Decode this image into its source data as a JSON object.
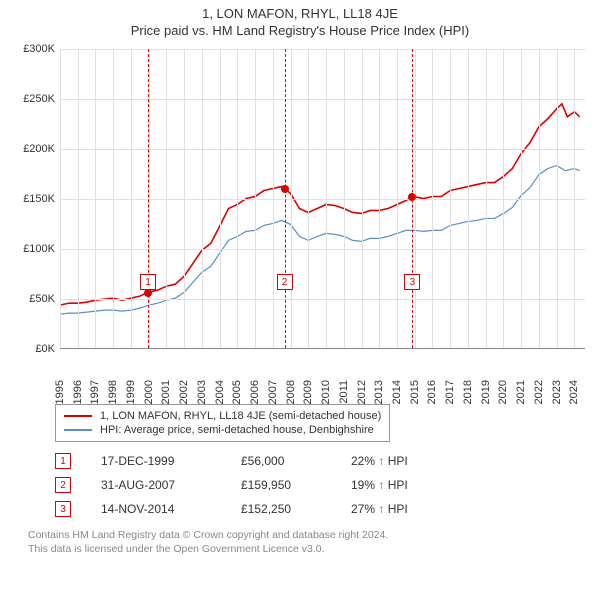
{
  "title_main": "1, LON MAFON, RHYL, LL18 4JE",
  "title_sub": "Price paid vs. HM Land Registry's House Price Index (HPI)",
  "chart": {
    "type": "line",
    "background_color": "#ffffff",
    "grid_color": "#e0e0e0",
    "axis_color": "#888888",
    "x_years": [
      1995,
      1996,
      1997,
      1998,
      1999,
      2000,
      2001,
      2002,
      2003,
      2004,
      2005,
      2006,
      2007,
      2008,
      2009,
      2010,
      2011,
      2012,
      2013,
      2014,
      2015,
      2016,
      2017,
      2018,
      2019,
      2020,
      2021,
      2022,
      2023,
      2024
    ],
    "xlim": [
      1995,
      2024.6
    ],
    "ylim": [
      0,
      300000
    ],
    "ytick_step": 50000,
    "ytick_labels": [
      "£0K",
      "£50K",
      "£100K",
      "£150K",
      "£200K",
      "£250K",
      "£300K"
    ],
    "series": [
      {
        "name": "1, LON MAFON, RHYL, LL18 4JE (semi-detached house)",
        "color": "#dd0000",
        "width": 1.6,
        "points": [
          [
            1995.0,
            43000
          ],
          [
            1995.5,
            45000
          ],
          [
            1996.0,
            45000
          ],
          [
            1996.5,
            46000
          ],
          [
            1997.0,
            48000
          ],
          [
            1997.5,
            49000
          ],
          [
            1998.0,
            50000
          ],
          [
            1998.5,
            48000
          ],
          [
            1999.0,
            50000
          ],
          [
            1999.5,
            52000
          ],
          [
            1999.96,
            56000
          ],
          [
            2000.5,
            58000
          ],
          [
            2001.0,
            62000
          ],
          [
            2001.5,
            64000
          ],
          [
            2002.0,
            72000
          ],
          [
            2002.5,
            85000
          ],
          [
            2003.0,
            98000
          ],
          [
            2003.5,
            105000
          ],
          [
            2004.0,
            122000
          ],
          [
            2004.5,
            140000
          ],
          [
            2005.0,
            144000
          ],
          [
            2005.5,
            150000
          ],
          [
            2006.0,
            152000
          ],
          [
            2006.5,
            158000
          ],
          [
            2007.0,
            160000
          ],
          [
            2007.5,
            162000
          ],
          [
            2007.66,
            159950
          ],
          [
            2008.0,
            155000
          ],
          [
            2008.5,
            140000
          ],
          [
            2009.0,
            136000
          ],
          [
            2009.5,
            140000
          ],
          [
            2010.0,
            144000
          ],
          [
            2010.5,
            143000
          ],
          [
            2011.0,
            140000
          ],
          [
            2011.5,
            136000
          ],
          [
            2012.0,
            135000
          ],
          [
            2012.5,
            138000
          ],
          [
            2013.0,
            138000
          ],
          [
            2013.5,
            140000
          ],
          [
            2014.0,
            144000
          ],
          [
            2014.5,
            148000
          ],
          [
            2014.87,
            152250
          ],
          [
            2015.5,
            150000
          ],
          [
            2016.0,
            152000
          ],
          [
            2016.5,
            152000
          ],
          [
            2017.0,
            158000
          ],
          [
            2017.5,
            160000
          ],
          [
            2018.0,
            162000
          ],
          [
            2018.5,
            164000
          ],
          [
            2019.0,
            166000
          ],
          [
            2019.5,
            166000
          ],
          [
            2020.0,
            172000
          ],
          [
            2020.5,
            180000
          ],
          [
            2021.0,
            195000
          ],
          [
            2021.5,
            206000
          ],
          [
            2022.0,
            222000
          ],
          [
            2022.5,
            230000
          ],
          [
            2023.0,
            240000
          ],
          [
            2023.3,
            245000
          ],
          [
            2023.6,
            232000
          ],
          [
            2024.0,
            237000
          ],
          [
            2024.3,
            232000
          ]
        ]
      },
      {
        "name": "HPI: Average price, semi-detached house, Denbighshire",
        "color": "#5b8ec9",
        "width": 1.2,
        "points": [
          [
            1995.0,
            34000
          ],
          [
            1995.5,
            35000
          ],
          [
            1996.0,
            35000
          ],
          [
            1996.5,
            36000
          ],
          [
            1997.0,
            37000
          ],
          [
            1997.5,
            38000
          ],
          [
            1998.0,
            38000
          ],
          [
            1998.5,
            37000
          ],
          [
            1999.0,
            38000
          ],
          [
            1999.5,
            40000
          ],
          [
            2000.0,
            43000
          ],
          [
            2000.5,
            45000
          ],
          [
            2001.0,
            48000
          ],
          [
            2001.5,
            50000
          ],
          [
            2002.0,
            56000
          ],
          [
            2002.5,
            66000
          ],
          [
            2003.0,
            76000
          ],
          [
            2003.5,
            82000
          ],
          [
            2004.0,
            95000
          ],
          [
            2004.5,
            108000
          ],
          [
            2005.0,
            112000
          ],
          [
            2005.5,
            117000
          ],
          [
            2006.0,
            118000
          ],
          [
            2006.5,
            123000
          ],
          [
            2007.0,
            125000
          ],
          [
            2007.5,
            128000
          ],
          [
            2008.0,
            124000
          ],
          [
            2008.5,
            112000
          ],
          [
            2009.0,
            108000
          ],
          [
            2009.5,
            112000
          ],
          [
            2010.0,
            115000
          ],
          [
            2010.5,
            114000
          ],
          [
            2011.0,
            112000
          ],
          [
            2011.5,
            108000
          ],
          [
            2012.0,
            107000
          ],
          [
            2012.5,
            110000
          ],
          [
            2013.0,
            110000
          ],
          [
            2013.5,
            112000
          ],
          [
            2014.0,
            115000
          ],
          [
            2014.5,
            118000
          ],
          [
            2015.0,
            118000
          ],
          [
            2015.5,
            117000
          ],
          [
            2016.0,
            118000
          ],
          [
            2016.5,
            118000
          ],
          [
            2017.0,
            123000
          ],
          [
            2017.5,
            125000
          ],
          [
            2018.0,
            127000
          ],
          [
            2018.5,
            128000
          ],
          [
            2019.0,
            130000
          ],
          [
            2019.5,
            130000
          ],
          [
            2020.0,
            135000
          ],
          [
            2020.5,
            141000
          ],
          [
            2021.0,
            153000
          ],
          [
            2021.5,
            161000
          ],
          [
            2022.0,
            174000
          ],
          [
            2022.5,
            180000
          ],
          [
            2023.0,
            183000
          ],
          [
            2023.5,
            178000
          ],
          [
            2024.0,
            180000
          ],
          [
            2024.3,
            178000
          ]
        ]
      }
    ],
    "sales_markers": [
      {
        "idx": "1",
        "x": 1999.96,
        "y": 56000,
        "box_y": 75000
      },
      {
        "idx": "2",
        "x": 2007.66,
        "y": 159950,
        "box_y": 75000
      },
      {
        "idx": "3",
        "x": 2014.87,
        "y": 152250,
        "box_y": 75000
      }
    ]
  },
  "legend": {
    "items": [
      {
        "color": "#dd0000",
        "label": "1, LON MAFON, RHYL, LL18 4JE (semi-detached house)"
      },
      {
        "color": "#5b8ec9",
        "label": "HPI: Average price, semi-detached house, Denbighshire"
      }
    ]
  },
  "sales_table": [
    {
      "idx": "1",
      "date": "17-DEC-1999",
      "price": "£56,000",
      "pct": "22%",
      "arrow": "↑",
      "suffix": "HPI"
    },
    {
      "idx": "2",
      "date": "31-AUG-2007",
      "price": "£159,950",
      "pct": "19%",
      "arrow": "↑",
      "suffix": "HPI"
    },
    {
      "idx": "3",
      "date": "14-NOV-2014",
      "price": "£152,250",
      "pct": "27%",
      "arrow": "↑",
      "suffix": "HPI"
    }
  ],
  "footer_line1": "Contains HM Land Registry data © Crown copyright and database right 2024.",
  "footer_line2": "This data is licensed under the Open Government Licence v3.0."
}
